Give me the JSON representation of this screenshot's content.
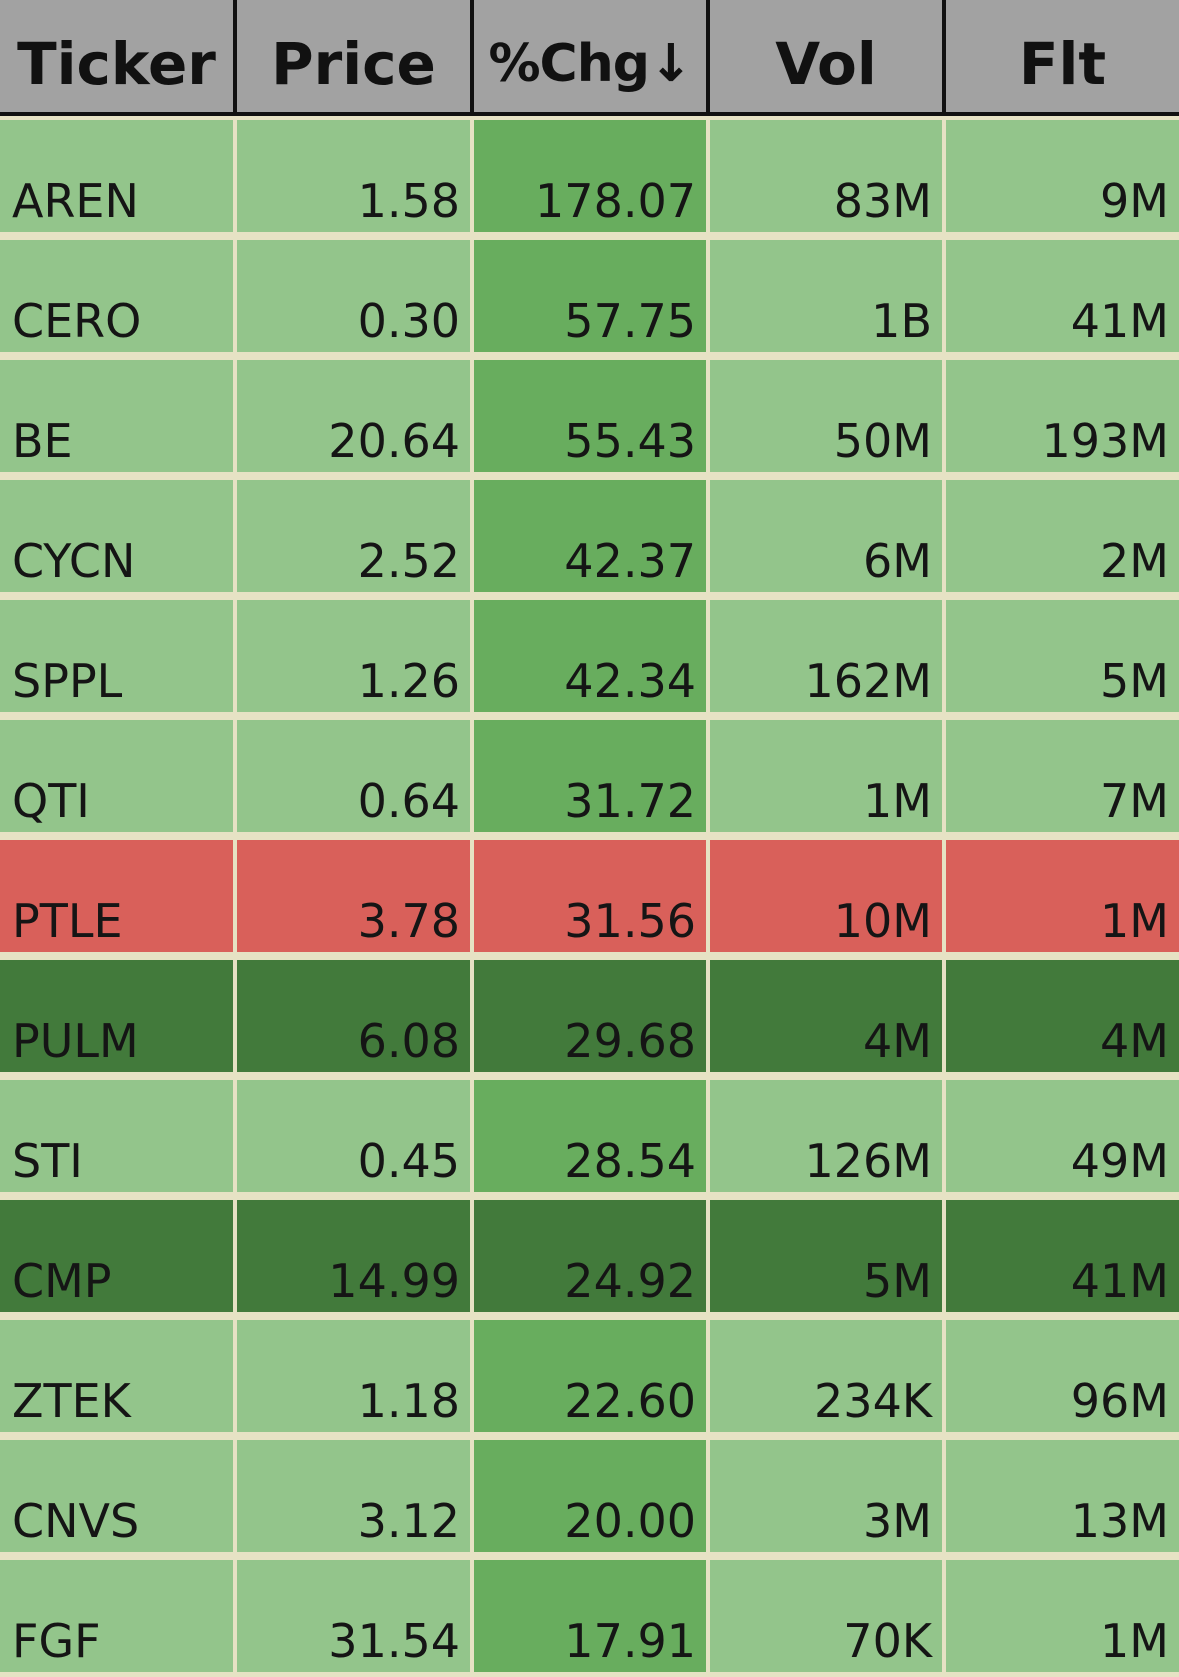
{
  "header": {
    "ticker": "Ticker",
    "price": "Price",
    "pct_chg": "%Chg",
    "sort_arrow": "↓",
    "vol": "Vol",
    "flt": "Flt"
  },
  "colors": {
    "header_bg": "#a2a2a2",
    "row_green": "#93c58b",
    "sorted_column_green": "#68ad5e",
    "row_dark_green": "#427a3b",
    "row_red": "#d9605a",
    "grid_lines": "#e6e2c4"
  },
  "rows": [
    {
      "ticker": "AREN",
      "price": "1.58",
      "pct": "178.07",
      "vol": "83M",
      "flt": "9M",
      "style": "normal"
    },
    {
      "ticker": "CERO",
      "price": "0.30",
      "pct": "57.75",
      "vol": "1B",
      "flt": "41M",
      "style": "normal"
    },
    {
      "ticker": "BE",
      "price": "20.64",
      "pct": "55.43",
      "vol": "50M",
      "flt": "193M",
      "style": "normal"
    },
    {
      "ticker": "CYCN",
      "price": "2.52",
      "pct": "42.37",
      "vol": "6M",
      "flt": "2M",
      "style": "normal"
    },
    {
      "ticker": "SPPL",
      "price": "1.26",
      "pct": "42.34",
      "vol": "162M",
      "flt": "5M",
      "style": "normal"
    },
    {
      "ticker": "QTI",
      "price": "0.64",
      "pct": "31.72",
      "vol": "1M",
      "flt": "7M",
      "style": "normal"
    },
    {
      "ticker": "PTLE",
      "price": "3.78",
      "pct": "31.56",
      "vol": "10M",
      "flt": "1M",
      "style": "red"
    },
    {
      "ticker": "PULM",
      "price": "6.08",
      "pct": "29.68",
      "vol": "4M",
      "flt": "4M",
      "style": "dark"
    },
    {
      "ticker": "STI",
      "price": "0.45",
      "pct": "28.54",
      "vol": "126M",
      "flt": "49M",
      "style": "normal"
    },
    {
      "ticker": "CMP",
      "price": "14.99",
      "pct": "24.92",
      "vol": "5M",
      "flt": "41M",
      "style": "dark"
    },
    {
      "ticker": "ZTEK",
      "price": "1.18",
      "pct": "22.60",
      "vol": "234K",
      "flt": "96M",
      "style": "normal"
    },
    {
      "ticker": "CNVS",
      "price": "3.12",
      "pct": "20.00",
      "vol": "3M",
      "flt": "13M",
      "style": "normal"
    },
    {
      "ticker": "FGF",
      "price": "31.54",
      "pct": "17.91",
      "vol": "70K",
      "flt": "1M",
      "style": "normal"
    }
  ]
}
